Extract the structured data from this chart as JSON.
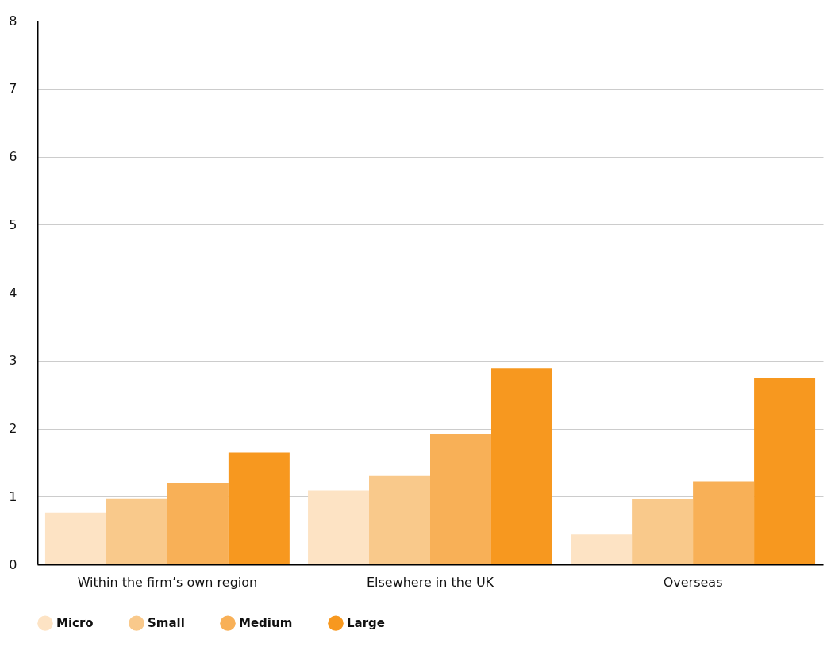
{
  "chart_data": {
    "type": "bar",
    "categories": [
      "Within the firm’s own region",
      "Elsewhere in the UK",
      "Overseas"
    ],
    "series": [
      {
        "name": "Micro",
        "color": "#fde3c4",
        "values": [
          0.76,
          1.09,
          0.44
        ]
      },
      {
        "name": "Small",
        "color": "#f9c98b",
        "values": [
          0.97,
          1.31,
          0.96
        ]
      },
      {
        "name": "Medium",
        "color": "#f8b057",
        "values": [
          1.2,
          1.92,
          1.22
        ]
      },
      {
        "name": "Large",
        "color": "#f7981f",
        "values": [
          1.65,
          2.89,
          2.74
        ]
      }
    ],
    "ylim": [
      0,
      8
    ],
    "yticks": [
      0,
      1,
      2,
      3,
      4,
      5,
      6,
      7,
      8
    ],
    "grid": "y",
    "legend": "bottom"
  }
}
